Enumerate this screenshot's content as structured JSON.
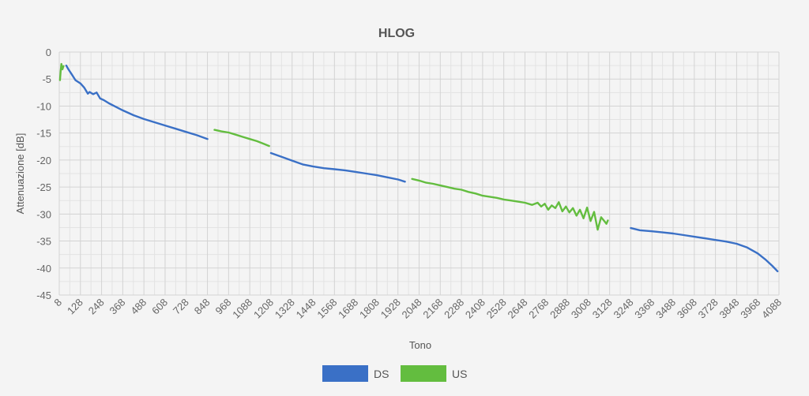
{
  "chart_data": {
    "type": "line",
    "title": "HLOG",
    "xlabel": "Tono",
    "ylabel": "Attenuazione [dB]",
    "xlim": [
      8,
      4088
    ],
    "ylim": [
      -45,
      0
    ],
    "x_ticks": [
      8,
      128,
      248,
      368,
      488,
      608,
      728,
      848,
      968,
      1088,
      1208,
      1328,
      1448,
      1568,
      1688,
      1808,
      1928,
      2048,
      2168,
      2288,
      2408,
      2528,
      2648,
      2768,
      2888,
      3008,
      3128,
      3248,
      3368,
      3488,
      3608,
      3728,
      3848,
      3968,
      4088
    ],
    "y_ticks": [
      0,
      -5,
      -10,
      -15,
      -20,
      -25,
      -30,
      -35,
      -40,
      -45
    ],
    "grid": true,
    "legend_position": "bottom",
    "series": [
      {
        "name": "DS",
        "color": "#3a70c6",
        "segments": [
          [
            [
              48,
              -2.5
            ],
            [
              60,
              -3.2
            ],
            [
              80,
              -4.2
            ],
            [
              100,
              -5.2
            ],
            [
              128,
              -5.8
            ],
            [
              150,
              -6.6
            ],
            [
              170,
              -7.7
            ],
            [
              180,
              -7.4
            ],
            [
              200,
              -7.8
            ],
            [
              220,
              -7.5
            ],
            [
              240,
              -8.6
            ],
            [
              260,
              -8.9
            ],
            [
              290,
              -9.5
            ],
            [
              320,
              -10.0
            ],
            [
              368,
              -10.8
            ],
            [
              430,
              -11.7
            ],
            [
              488,
              -12.4
            ],
            [
              548,
              -13.0
            ],
            [
              608,
              -13.6
            ],
            [
              668,
              -14.2
            ],
            [
              728,
              -14.8
            ],
            [
              788,
              -15.4
            ],
            [
              848,
              -16.1
            ]
          ],
          [
            [
              1208,
              -18.7
            ],
            [
              1268,
              -19.4
            ],
            [
              1328,
              -20.1
            ],
            [
              1388,
              -20.8
            ],
            [
              1448,
              -21.2
            ],
            [
              1508,
              -21.5
            ],
            [
              1568,
              -21.7
            ],
            [
              1628,
              -21.9
            ],
            [
              1688,
              -22.2
            ],
            [
              1748,
              -22.5
            ],
            [
              1808,
              -22.8
            ],
            [
              1868,
              -23.2
            ],
            [
              1928,
              -23.6
            ],
            [
              1968,
              -24.0
            ]
          ],
          [
            [
              3248,
              -32.6
            ],
            [
              3300,
              -33.0
            ],
            [
              3368,
              -33.2
            ],
            [
              3428,
              -33.4
            ],
            [
              3488,
              -33.6
            ],
            [
              3548,
              -33.9
            ],
            [
              3608,
              -34.2
            ],
            [
              3668,
              -34.5
            ],
            [
              3728,
              -34.8
            ],
            [
              3788,
              -35.1
            ],
            [
              3848,
              -35.5
            ],
            [
              3908,
              -36.2
            ],
            [
              3968,
              -37.3
            ],
            [
              4010,
              -38.4
            ],
            [
              4050,
              -39.6
            ],
            [
              4080,
              -40.6
            ]
          ]
        ]
      },
      {
        "name": "US",
        "color": "#63bd3f",
        "segments": [
          [
            [
              12,
              -5.2
            ],
            [
              16,
              -3.5
            ],
            [
              20,
              -2.2
            ],
            [
              26,
              -3.2
            ],
            [
              32,
              -2.6
            ]
          ],
          [
            [
              888,
              -14.4
            ],
            [
              928,
              -14.7
            ],
            [
              968,
              -14.9
            ],
            [
              1008,
              -15.3
            ],
            [
              1048,
              -15.7
            ],
            [
              1088,
              -16.1
            ],
            [
              1128,
              -16.5
            ],
            [
              1168,
              -17.0
            ],
            [
              1198,
              -17.4
            ]
          ],
          [
            [
              2008,
              -23.5
            ],
            [
              2048,
              -23.8
            ],
            [
              2088,
              -24.2
            ],
            [
              2128,
              -24.4
            ],
            [
              2168,
              -24.7
            ],
            [
              2208,
              -25.0
            ],
            [
              2248,
              -25.3
            ],
            [
              2288,
              -25.5
            ],
            [
              2328,
              -25.9
            ],
            [
              2368,
              -26.2
            ],
            [
              2408,
              -26.6
            ],
            [
              2448,
              -26.8
            ],
            [
              2488,
              -27.0
            ],
            [
              2528,
              -27.3
            ],
            [
              2568,
              -27.5
            ],
            [
              2608,
              -27.7
            ],
            [
              2648,
              -27.9
            ],
            [
              2688,
              -28.3
            ],
            [
              2720,
              -27.9
            ],
            [
              2740,
              -28.6
            ],
            [
              2760,
              -28.1
            ],
            [
              2780,
              -29.2
            ],
            [
              2800,
              -28.4
            ],
            [
              2820,
              -28.9
            ],
            [
              2840,
              -27.8
            ],
            [
              2860,
              -29.5
            ],
            [
              2880,
              -28.6
            ],
            [
              2900,
              -29.7
            ],
            [
              2920,
              -28.9
            ],
            [
              2940,
              -30.3
            ],
            [
              2960,
              -29.2
            ],
            [
              2980,
              -30.8
            ],
            [
              3000,
              -28.8
            ],
            [
              3020,
              -31.3
            ],
            [
              3040,
              -29.6
            ],
            [
              3060,
              -32.9
            ],
            [
              3080,
              -30.6
            ],
            [
              3100,
              -31.4
            ],
            [
              3110,
              -31.8
            ],
            [
              3118,
              -31.2
            ]
          ]
        ]
      }
    ]
  }
}
